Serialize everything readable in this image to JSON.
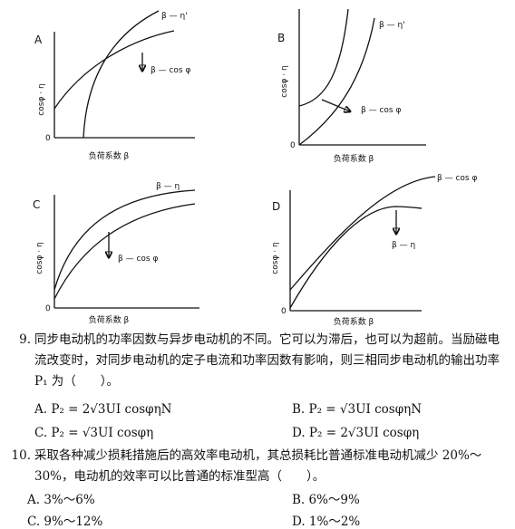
{
  "graphs": [
    {
      "label": "A",
      "curve_1": "β — η'",
      "curve_2": "β — cos φ",
      "y_axis": "cosφ · η",
      "origin": "0",
      "x_axis": "负荷系数 β"
    },
    {
      "label": "B",
      "curve_1": "β — η'",
      "curve_2": "β — cos φ",
      "y_axis": "cosφ · η",
      "origin": "0",
      "x_axis": "负荷系数 β"
    },
    {
      "label": "C",
      "curve_1": "β — η",
      "curve_2": "β — cos φ",
      "y_axis": "cosφ · η",
      "origin": "0",
      "x_axis": "负荷系数 β"
    },
    {
      "label": "D",
      "curve_1": "β — cos φ",
      "curve_2": "β — η",
      "y_axis": "cosφ · η",
      "origin": "0",
      "x_axis": "负荷系数 β"
    }
  ],
  "questions": [
    {
      "number": "9.",
      "text": "同步电动机的功率因数与异步电动机的不同。它可以为滞后，也可以为超前。当励磁电流改变时，对同步电动机的定子电流和功率因数有影响，则三相同步电动机的输出功率 P₁ 为（　　）。",
      "options": [
        "A. P₂ = 2√3UI cosφηN",
        "B. P₂ = √3UI cosφηN",
        "C. P₂ = √3UI cosφη",
        "D. P₂ = 2√3UI cosφη"
      ]
    },
    {
      "number": "10.",
      "text": "采取各种减少损耗措施后的高效率电动机，其总损耗比普通标准电动机减少 20%～30%，电动机的效率可以比普通的标准型高（　　）。",
      "options": [
        "A. 3%～6%",
        "B. 6%～9%",
        "C. 9%～12%",
        "D. 1%～2%"
      ]
    }
  ]
}
